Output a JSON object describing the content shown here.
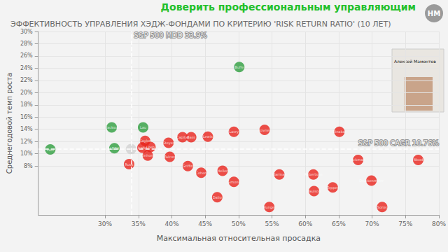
{
  "banner": "Доверить профессиональным управляющим",
  "logo": "НМ",
  "speaker": "Алексей Мамонтов",
  "chart_data": {
    "type": "scatter",
    "title": "ЭФФЕКТИВНОСТЬ УПРАВЛЕНИЯ ХЭДЖ-ФОНДАМИ ПО КРИТЕРИЮ 'RISK RETURN RATIO' (10 ЛЕТ)",
    "x_label": "Максимальная относительная просадка",
    "y_label": "Среднегодовой темп роста",
    "x": [
      21.8,
      31.0,
      35.7,
      31.4,
      50.1,
      33.9,
      33.6,
      36.0,
      36.8,
      35.6,
      36.4,
      39.5,
      39.7,
      41.6,
      42.9,
      45.4,
      49.3,
      53.9,
      65.1,
      42.4,
      44.4,
      47.6,
      49.3,
      46.8,
      56.1,
      61.2,
      61.3,
      64.1,
      67.9,
      69.9,
      76.9,
      71.5,
      54.6
    ],
    "values": [
      10.7,
      14.3,
      14.3,
      10.9,
      24.2,
      10.76,
      8.3,
      12.1,
      11.1,
      11.0,
      9.7,
      11.8,
      9.5,
      12.7,
      12.7,
      12.8,
      13.6,
      13.9,
      13.6,
      8.0,
      6.9,
      7.2,
      5.4,
      2.9,
      6.6,
      6.6,
      3.9,
      4.5,
      9.0,
      5.6,
      9.0,
      1.3,
      1.3
    ],
    "point_labels": [
      "Paul",
      "Jackso",
      "Lau",
      "LBPH",
      "Buffe",
      null,
      "Rusk",
      "Saylor",
      "Loeb",
      "Icahn",
      "Einhorn",
      "Steyer",
      "Falcon",
      "Capital",
      "Bass",
      "Lewis",
      "Lasry",
      "Kovner",
      "Dinakar",
      "Griffin",
      "Cohen",
      "Heller",
      "Simons",
      "Dalio",
      "Klarman",
      "Robertson",
      "Paulson",
      "Tepper",
      "Ackman",
      "Druckenmiller",
      "Wood",
      "Soros",
      "Munger"
    ],
    "colors": [
      "#2e9e3e",
      "#2e9e3e",
      "#2e9e3e",
      "#2e9e3e",
      "#2e9e3e",
      "#d2d2d2",
      "#e8231b",
      "#e8231b",
      "#e8231b",
      "#e8231b",
      "#e8231b",
      "#e8231b",
      "#e8231b",
      "#e8231b",
      "#e8231b",
      "#e8231b",
      "#e8231b",
      "#e8231b",
      "#e8231b",
      "#e8231b",
      "#e8231b",
      "#e8231b",
      "#e8231b",
      "#e8231b",
      "#e8231b",
      "#e8231b",
      "#e8231b",
      "#e8231b",
      "#e8231b",
      "#e8231b",
      "#e8231b",
      "#e8231b",
      "#e8231b"
    ],
    "marker": "circle",
    "xlim": [
      20,
      80
    ],
    "xticks": [
      {
        "value": 30,
        "label": "30%"
      },
      {
        "value": 35,
        "label": "35%"
      },
      {
        "value": 40,
        "label": "40%"
      },
      {
        "value": 45,
        "label": "45%"
      },
      {
        "value": 50,
        "label": "50%"
      },
      {
        "value": 55,
        "label": "55%"
      },
      {
        "value": 60,
        "label": "60%"
      },
      {
        "value": 65,
        "label": "65%"
      },
      {
        "value": 70,
        "label": "70%"
      },
      {
        "value": 75,
        "label": "75%"
      },
      {
        "value": 80,
        "label": "80%"
      }
    ],
    "ylim": [
      0,
      30
    ],
    "yticks": [
      {
        "value": 8,
        "label": "8%"
      },
      {
        "value": 10,
        "label": "10%"
      },
      {
        "value": 12,
        "label": "12%"
      },
      {
        "value": 14,
        "label": "14%"
      },
      {
        "value": 16,
        "label": "16%"
      },
      {
        "value": 18,
        "label": "18%"
      },
      {
        "value": 20,
        "label": "20%"
      },
      {
        "value": 22,
        "label": "22%"
      },
      {
        "value": 24,
        "label": "24%"
      },
      {
        "value": 26,
        "label": "26%"
      },
      {
        "value": 28,
        "label": "28%"
      },
      {
        "value": 30,
        "label": "30%"
      }
    ],
    "grid": true,
    "reference_lines": [
      {
        "axis": "x",
        "value": 33.9,
        "label": "S&P 500 MDD 33.9%",
        "line_style": "dashed"
      },
      {
        "axis": "y",
        "value": 10.76,
        "label": "S&P 500 CAGR 10.76%",
        "line_style": "dashed"
      }
    ]
  }
}
